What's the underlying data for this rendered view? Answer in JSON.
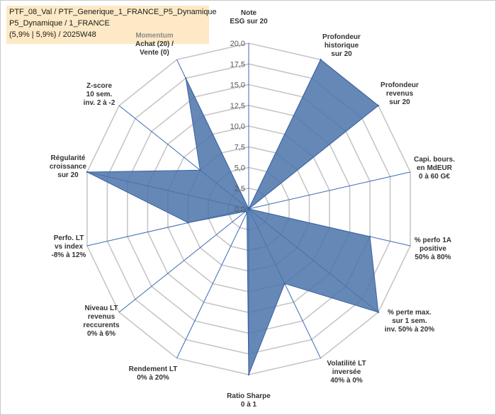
{
  "header": {
    "title_lines": [
      "PTF_08_Val / PTF_Generique_1_FRANCE_P5_Dynamique",
      "P5_Dynamique / 1_FRANCE",
      "(5,9% | 5,9%) / 2025W48"
    ]
  },
  "chart_data": {
    "type": "radar",
    "title": "",
    "rmax": 20,
    "grid": true,
    "ticks": [
      {
        "value": 0,
        "label": "0,0"
      },
      {
        "value": 2.5,
        "label": "2,5"
      },
      {
        "value": 5,
        "label": "5,0"
      },
      {
        "value": 7.5,
        "label": "7,5"
      },
      {
        "value": 10,
        "label": "10,0"
      },
      {
        "value": 12.5,
        "label": "12,5"
      },
      {
        "value": 15,
        "label": "15,0"
      },
      {
        "value": 17.5,
        "label": "17,5"
      },
      {
        "value": 20,
        "label": "20,0"
      }
    ],
    "axes": [
      {
        "lines": [
          "Note",
          "ESG sur 20"
        ],
        "value": 0
      },
      {
        "lines": [
          "Profondeur",
          "historique",
          "sur 20"
        ],
        "value": 20
      },
      {
        "lines": [
          "Profondeur",
          "revenus",
          "sur 20"
        ],
        "value": 20
      },
      {
        "lines": [
          "Capi. bours.",
          "en MdEUR",
          "0 à 60 G€"
        ],
        "value": 0
      },
      {
        "lines": [
          "% perfo 1A",
          "positive",
          "50% à 80%"
        ],
        "value": 15
      },
      {
        "lines": [
          "% perte max.",
          "sur 1 sem.",
          "inv. 50% à 20%"
        ],
        "value": 20
      },
      {
        "lines": [
          "Volatilité LT",
          "inversée",
          "40% à 0%"
        ],
        "value": 10
      },
      {
        "lines": [
          "Ratio Sharpe",
          "0 à 1"
        ],
        "value": 20
      },
      {
        "lines": [
          "Rendement LT",
          "0% à 20%"
        ],
        "value": 0.5
      },
      {
        "lines": [
          "Niveau LT",
          "revenus",
          "reccurents",
          "0% à 6%"
        ],
        "value": 0.5
      },
      {
        "lines": [
          "Perfo. LT",
          "vs index",
          "-8% à 12%"
        ],
        "value": 7.5
      },
      {
        "lines": [
          "Régularité",
          "croissance",
          "sur 20"
        ],
        "value": 20
      },
      {
        "lines": [
          "Z-score",
          "10 sem.",
          "inv. 2 à -2"
        ],
        "value": 7.5
      },
      {
        "lines": [
          "Momentum",
          "Achat (20) /",
          "Vente (0)"
        ],
        "value": 17.5
      }
    ],
    "colors": {
      "fill": "#4a73aa",
      "stroke": "#3a63a0",
      "spoke": "#3b68b6",
      "grid": "#c6c6c6"
    }
  }
}
